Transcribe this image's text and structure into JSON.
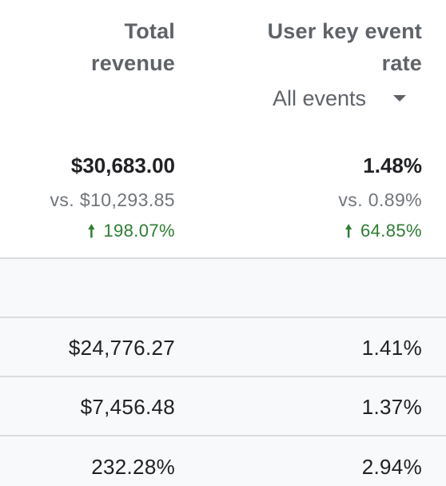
{
  "columns": {
    "revenue": {
      "header_line1": "Total",
      "header_line2": "revenue",
      "total": "$30,683.00",
      "compare": "vs. $10,293.85",
      "change": "198.07%"
    },
    "rate": {
      "header_line1": "User key event",
      "header_line2": "rate",
      "dropdown_label": "All events",
      "total": "1.48%",
      "compare": "vs. 0.89%",
      "change": "64.85%"
    }
  },
  "rows": [
    {
      "revenue": "$24,776.27",
      "rate": "1.41%"
    },
    {
      "revenue": "$7,456.48",
      "rate": "1.37%"
    },
    {
      "revenue": "232.28%",
      "rate": "2.94%"
    }
  ],
  "colors": {
    "positive_change": "#2e7d32",
    "header_text": "#5f6368",
    "band_bg": "#f8f9fa",
    "divider": "#dadce0"
  },
  "icons": {
    "change_direction": "arrow-up-icon",
    "dropdown": "caret-down-icon"
  }
}
